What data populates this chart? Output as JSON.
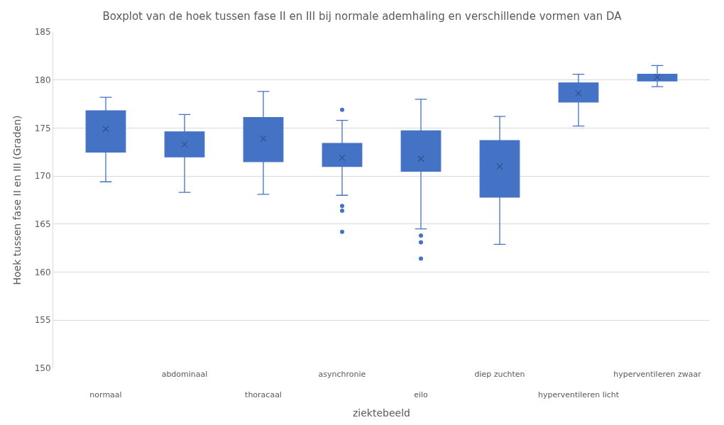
{
  "chart_data": {
    "type": "box",
    "title": "Boxplot van de hoek tussen fase II en III bij normale ademhaling en verschillende vormen van DA",
    "xlabel": "ziektebeeld",
    "ylabel": "Hoek tussen fase II en III (Graden)",
    "categories": [
      "normaal",
      "abdominaal",
      "thoracaal",
      "asynchronie",
      "eilo",
      "diep zuchten",
      "hyperventileren licht",
      "hyperventileren zwaar"
    ],
    "color": "#4472c4",
    "boxes": [
      {
        "low": 169.4,
        "q1": 172.5,
        "median": 175.9,
        "q3": 176.8,
        "high": 178.2,
        "mean": 174.9
      },
      {
        "low": 168.3,
        "q1": 172.0,
        "median": 173.8,
        "q3": 174.6,
        "high": 176.4,
        "mean": 173.3
      },
      {
        "low": 168.1,
        "q1": 171.5,
        "median": 174.3,
        "q3": 176.1,
        "high": 178.8,
        "mean": 173.9
      },
      {
        "low": 168.0,
        "q1": 171.0,
        "median": 172.4,
        "q3": 173.4,
        "high": 175.8,
        "mean": 171.9,
        "outliers": [
          176.9,
          166.9,
          166.4,
          164.2
        ]
      },
      {
        "low": 164.5,
        "q1": 170.5,
        "median": 172.5,
        "q3": 174.7,
        "high": 178.0,
        "mean": 171.8,
        "outliers": [
          163.8,
          163.1,
          161.4
        ]
      },
      {
        "low": 162.9,
        "q1": 167.8,
        "median": 171.9,
        "q3": 173.7,
        "high": 176.2,
        "mean": 171.0
      },
      {
        "low": 175.2,
        "q1": 177.7,
        "median": 178.7,
        "q3": 179.7,
        "high": 180.6,
        "mean": 178.6
      },
      {
        "low": 179.3,
        "q1": 179.9,
        "median": 180.3,
        "q3": 180.6,
        "high": 181.5,
        "mean": 180.3
      }
    ],
    "ylim": [
      150,
      185
    ],
    "yticks": [
      150,
      155,
      160,
      165,
      170,
      175,
      180,
      185
    ],
    "grid": "y"
  }
}
